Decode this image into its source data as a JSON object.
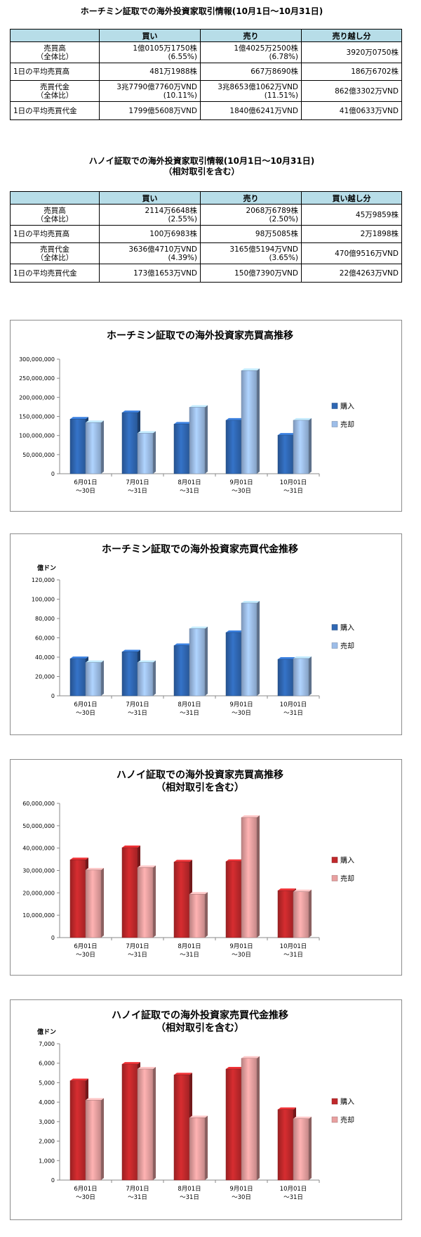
{
  "hcm_table": {
    "title": "ホーチミン証取での海外投資家取引情報(10月1日～10月31日)",
    "headers": [
      "",
      "買い",
      "売り",
      "売り越し分"
    ],
    "rows": [
      [
        "売買高\n（全体比）",
        "1億0105万1750株\n(6.55%)",
        "1億4025万2500株\n(6.78%)",
        "3920万0750株"
      ],
      [
        "1日の平均売買高",
        "481万1988株",
        "667万8690株",
        "186万6702株"
      ],
      [
        "売買代金\n（全体比）",
        "3兆7790億7760万VND\n(10.11%)",
        "3兆8653億1062万VND\n(11.51%)",
        "862億3302万VND"
      ],
      [
        "1日の平均売買代金",
        "1799億5608万VND",
        "1840億6241万VND",
        "41億0633万VND"
      ]
    ]
  },
  "hn_table": {
    "title": "ハノイ証取での海外投資家取引情報(10月1日～10月31日)\n（相対取引を含む）",
    "headers": [
      "",
      "買い",
      "売り",
      "買い越し分"
    ],
    "rows": [
      [
        "売買高\n（全体比）",
        "2114万6648株\n(2.55%)",
        "2068万6789株\n(2.50%)",
        "45万9859株"
      ],
      [
        "1日の平均売買高",
        "100万6983株",
        "98万5085株",
        "2万1898株"
      ],
      [
        "売買代金\n（全体比）",
        "3636億4710万VND\n(4.39%)",
        "3165億5194万VND\n(3.65%)",
        "470億9516万VND"
      ],
      [
        "1日の平均売買代金",
        "173億1653万VND",
        "150億7390万VND",
        "22億4263万VND"
      ]
    ]
  },
  "chart_data": [
    {
      "type": "bar",
      "title": "ホーチミン証取での海外投資家売買高推移",
      "unit_label": "",
      "categories": [
        "6月01日\n～30日",
        "7月01日\n～31日",
        "8月01日\n～31日",
        "9月01日\n～30日",
        "10月01日\n～31日"
      ],
      "series": [
        {
          "name": "購入",
          "values": [
            143000000,
            160000000,
            130000000,
            140000000,
            101000000
          ]
        },
        {
          "name": "売却",
          "values": [
            134000000,
            106000000,
            174000000,
            270000000,
            140000000
          ]
        }
      ],
      "ylim": [
        0,
        300000000
      ],
      "yticks": [
        "0",
        "50,000,000",
        "100,000,000",
        "150,000,000",
        "200,000,000",
        "250,000,000",
        "300,000,000"
      ],
      "legend": "right",
      "colors": [
        "#2f67b3",
        "#9dbde8"
      ]
    },
    {
      "type": "bar",
      "title": "ホーチミン証取での海外投資家売買代金推移",
      "unit_label": "億ドン",
      "categories": [
        "6月01日\n～30日",
        "7月01日\n～31日",
        "8月01日\n～31日",
        "9月01日\n～30日",
        "10月01日\n～31日"
      ],
      "series": [
        {
          "name": "購入",
          "values": [
            38500,
            45500,
            52000,
            65500,
            37800
          ]
        },
        {
          "name": "売却",
          "values": [
            34500,
            34500,
            69500,
            96000,
            38600
          ]
        }
      ],
      "ylim": [
        0,
        120000
      ],
      "yticks": [
        "0",
        "20,000",
        "40,000",
        "60,000",
        "80,000",
        "100,000",
        "120,000"
      ],
      "legend": "right",
      "colors": [
        "#2f67b3",
        "#9dbde8"
      ]
    },
    {
      "type": "bar",
      "title": "ハノイ証取での海外投資家売買高推移\n（相対取引を含む）",
      "unit_label": "",
      "categories": [
        "6月01日\n～30日",
        "7月01日\n～31日",
        "8月01日\n～31日",
        "9月01日\n～30日",
        "10月01日\n～31日"
      ],
      "series": [
        {
          "name": "購入",
          "values": [
            34800000,
            40200000,
            33800000,
            34000000,
            21000000
          ]
        },
        {
          "name": "売却",
          "values": [
            30200000,
            31300000,
            19400000,
            53700000,
            20500000
          ]
        }
      ],
      "ylim": [
        0,
        60000000
      ],
      "yticks": [
        "0",
        "10,000,000",
        "20,000,000",
        "30,000,000",
        "40,000,000",
        "50,000,000",
        "60,000,000"
      ],
      "legend": "right",
      "colors": [
        "#c0282b",
        "#e8a0a0"
      ]
    },
    {
      "type": "bar",
      "title": "ハノイ証取での海外投資家売買代金推移\n（相対取引を含む）",
      "unit_label": "億ドン",
      "categories": [
        "6月01日\n～30日",
        "7月01日\n～31日",
        "8月01日\n～31日",
        "9月01日\n～30日",
        "10月01日\n～31日"
      ],
      "series": [
        {
          "name": "購入",
          "values": [
            5100,
            5950,
            5400,
            5700,
            3620
          ]
        },
        {
          "name": "売却",
          "values": [
            4100,
            5700,
            3200,
            6250,
            3150
          ]
        }
      ],
      "ylim": [
        0,
        7000
      ],
      "yticks": [
        "0",
        "1,000",
        "2,000",
        "3,000",
        "4,000",
        "5,000",
        "6,000",
        "7,000"
      ],
      "legend": "right",
      "colors": [
        "#c0282b",
        "#e8a0a0"
      ]
    }
  ]
}
